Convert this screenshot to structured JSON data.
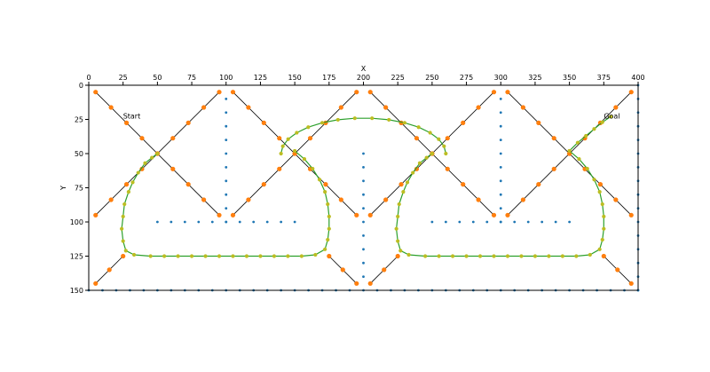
{
  "chart_data": {
    "type": "scatter",
    "title": "",
    "xlabel": "X",
    "ylabel": "Y",
    "xlim": [
      0,
      400
    ],
    "ylim": [
      150,
      0
    ],
    "x_axis_position": "top",
    "y_inverted": true,
    "grid": false,
    "legend": "none",
    "xticks": [
      0,
      25,
      50,
      75,
      100,
      125,
      150,
      175,
      200,
      225,
      250,
      275,
      300,
      325,
      350,
      375,
      400
    ],
    "yticks": [
      0,
      25,
      50,
      75,
      100,
      125,
      150
    ],
    "annotations": [
      {
        "text": "Start",
        "x": 25,
        "y": 23
      },
      {
        "text": "Goal",
        "x": 375,
        "y": 23
      }
    ],
    "colors": {
      "obstacle_points": "#1f77b4",
      "raw_path_points": "#ff7f0e",
      "raw_path_line": "#000000",
      "smoothed_path": "#2ca02c",
      "smoothed_points": "#bcbd22"
    },
    "series": [
      {
        "kind": "obstacles",
        "style": "points",
        "groups": [
          {
            "axis": "y",
            "x": 100,
            "from": 10,
            "to": 100,
            "step": 10
          },
          {
            "axis": "y",
            "x": 300,
            "from": 10,
            "to": 100,
            "step": 10
          },
          {
            "axis": "y",
            "x": 200,
            "from": 50,
            "to": 140,
            "step": 10
          },
          {
            "axis": "x",
            "y": 100,
            "from": 50,
            "to": 150,
            "step": 10
          },
          {
            "axis": "x",
            "y": 100,
            "from": 250,
            "to": 350,
            "step": 10
          },
          {
            "axis": "x",
            "y": 150,
            "from": 0,
            "to": 400,
            "step": 10
          },
          {
            "axis": "y",
            "x": 400,
            "from": 0,
            "to": 150,
            "step": 10
          }
        ]
      },
      {
        "kind": "raw_path",
        "style": "line+points",
        "segments": [
          {
            "from": [
              5,
              5
            ],
            "to": [
              95,
              95
            ],
            "n": 9
          },
          {
            "from": [
              95,
              5
            ],
            "to": [
              5,
              95
            ],
            "n": 9
          },
          {
            "from": [
              105,
              5
            ],
            "to": [
              195,
              95
            ],
            "n": 9
          },
          {
            "from": [
              195,
              5
            ],
            "to": [
              105,
              95
            ],
            "n": 9
          },
          {
            "from": [
              5,
              145
            ],
            "to": [
              25,
              125
            ],
            "n": 3
          },
          {
            "from": [
              175,
              125
            ],
            "to": [
              195,
              145
            ],
            "n": 3
          },
          {
            "from": [
              205,
              145
            ],
            "to": [
              225,
              125
            ],
            "n": 3
          },
          {
            "from": [
              205,
              5
            ],
            "to": [
              295,
              95
            ],
            "n": 9
          },
          {
            "from": [
              295,
              5
            ],
            "to": [
              205,
              95
            ],
            "n": 9
          },
          {
            "from": [
              305,
              5
            ],
            "to": [
              395,
              95
            ],
            "n": 9
          },
          {
            "from": [
              395,
              5
            ],
            "to": [
              305,
              95
            ],
            "n": 9
          },
          {
            "from": [
              375,
              125
            ],
            "to": [
              395,
              145
            ],
            "n": 3
          }
        ]
      },
      {
        "kind": "smoothed_path",
        "style": "curve+points",
        "loops": [
          {
            "center": [
              100,
              82
            ],
            "arc_start_deg": 210,
            "arc_end_deg": 330,
            "width": 75,
            "height": 54,
            "top_center": [
              200,
              24
            ],
            "bottom_y": 125,
            "left_x": 25,
            "right_x": 175
          },
          {
            "center": [
              300,
              82
            ],
            "arc_start_deg": 210,
            "arc_end_deg": 330,
            "width": 75,
            "height": 54,
            "bottom_y": 125,
            "left_x": 225,
            "right_x": 375
          }
        ]
      }
    ]
  }
}
